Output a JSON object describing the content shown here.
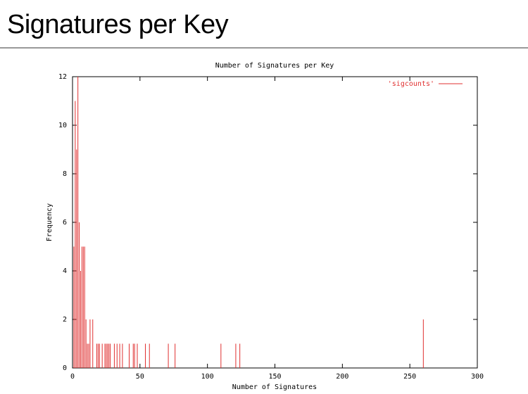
{
  "page_title": "Signatures per Key",
  "chart_data": {
    "type": "impulses",
    "title": "Number of Signatures per Key",
    "x_label": "Number of Signatures",
    "y_label": "Frequency",
    "series": [
      {
        "name": "'sigcounts'",
        "color": "#e03030",
        "x": [
          1,
          2,
          3,
          4,
          5,
          6,
          7,
          8,
          9,
          10,
          11,
          12,
          13,
          15,
          18,
          19,
          20,
          22,
          24,
          25,
          26,
          27,
          28,
          31,
          33,
          35,
          37,
          42,
          45,
          46,
          48,
          54,
          57,
          71,
          76,
          110,
          121,
          124,
          260
        ],
        "values": [
          5,
          11,
          9,
          12,
          6,
          4,
          5,
          5,
          5,
          2,
          1,
          1,
          2,
          2,
          1,
          1,
          1,
          1,
          1,
          1,
          1,
          1,
          1,
          1,
          1,
          1,
          1,
          1,
          1,
          1,
          1,
          1,
          1,
          1,
          1,
          1,
          1,
          1,
          2
        ]
      }
    ],
    "xlim": [
      0,
      300
    ],
    "xticks": [
      0,
      50,
      100,
      150,
      200,
      250,
      300
    ],
    "ylim": [
      0,
      12
    ],
    "yticks": [
      0,
      2,
      4,
      6,
      8,
      10,
      12
    ],
    "legend": "top-right"
  }
}
